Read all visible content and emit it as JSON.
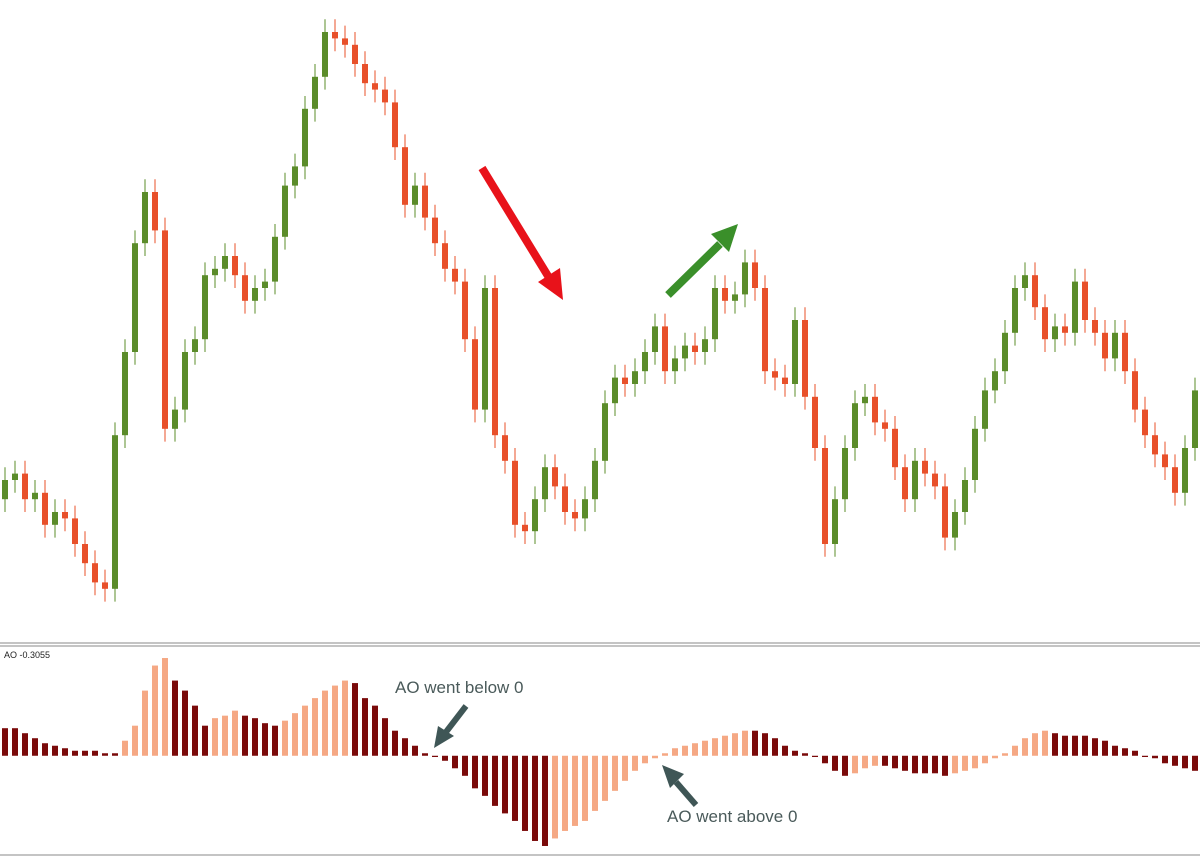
{
  "chart_data": [
    {
      "type": "candlestick",
      "up_color": "#5b8c2a",
      "down_color": "#e8502a",
      "ylim": [
        0,
        100
      ],
      "open": [
        22,
        25,
        26,
        22,
        23,
        18,
        20,
        19,
        15,
        12,
        9,
        8,
        32,
        45,
        62,
        70,
        64,
        33,
        36,
        45,
        47,
        57,
        58,
        60,
        57,
        53,
        55,
        56,
        63,
        71,
        74,
        83,
        88,
        95,
        94,
        93,
        90,
        87,
        86,
        84,
        77,
        68,
        71,
        66,
        62,
        58,
        56,
        47,
        36,
        55,
        32,
        28,
        18,
        17,
        22,
        27,
        24,
        20,
        19,
        22,
        28,
        37,
        41,
        40,
        42,
        45,
        49,
        42,
        44,
        46,
        45,
        47,
        55,
        53,
        54,
        59,
        55,
        42,
        41,
        40,
        50,
        38,
        30,
        15,
        22,
        30,
        37,
        38,
        34,
        33,
        27,
        22,
        28,
        26,
        24,
        16,
        20,
        25,
        33,
        39,
        42,
        48,
        55,
        57,
        52,
        47,
        49,
        48,
        56,
        50,
        48,
        44,
        48,
        42,
        36,
        32,
        29,
        27,
        23,
        30
      ],
      "high": [
        27,
        28,
        28,
        25,
        25,
        22,
        22,
        21,
        17,
        14,
        11,
        34,
        47,
        64,
        72,
        72,
        66,
        38,
        47,
        49,
        59,
        60,
        62,
        62,
        59,
        57,
        58,
        65,
        73,
        76,
        85,
        90,
        97,
        97,
        96,
        95,
        92,
        89,
        88,
        86,
        79,
        73,
        73,
        68,
        64,
        60,
        58,
        49,
        57,
        57,
        34,
        30,
        20,
        24,
        29,
        29,
        26,
        22,
        24,
        30,
        39,
        43,
        43,
        44,
        47,
        51,
        51,
        46,
        48,
        48,
        49,
        57,
        57,
        56,
        61,
        61,
        57,
        44,
        43,
        52,
        52,
        40,
        32,
        24,
        32,
        39,
        40,
        40,
        36,
        35,
        29,
        30,
        30,
        28,
        26,
        22,
        27,
        35,
        41,
        44,
        50,
        57,
        59,
        59,
        54,
        51,
        51,
        58,
        58,
        52,
        50,
        50,
        50,
        44,
        38,
        34,
        31,
        29,
        32,
        41
      ],
      "low": [
        20,
        23,
        20,
        20,
        16,
        16,
        17,
        13,
        10,
        7,
        6,
        6,
        30,
        43,
        60,
        62,
        31,
        31,
        34,
        43,
        45,
        55,
        56,
        55,
        51,
        51,
        53,
        54,
        61,
        69,
        72,
        81,
        86,
        92,
        91,
        88,
        85,
        84,
        82,
        75,
        66,
        66,
        64,
        60,
        56,
        54,
        45,
        34,
        34,
        30,
        26,
        16,
        15,
        15,
        20,
        22,
        18,
        17,
        17,
        20,
        26,
        35,
        38,
        38,
        40,
        43,
        40,
        40,
        42,
        43,
        43,
        45,
        51,
        51,
        52,
        53,
        40,
        39,
        38,
        38,
        36,
        28,
        13,
        13,
        20,
        28,
        35,
        32,
        31,
        25,
        20,
        20,
        24,
        22,
        14,
        14,
        18,
        23,
        31,
        37,
        40,
        46,
        53,
        50,
        45,
        45,
        46,
        46,
        48,
        46,
        42,
        42,
        40,
        34,
        30,
        27,
        25,
        21,
        21,
        28
      ],
      "close": [
        25,
        26,
        22,
        23,
        18,
        20,
        19,
        15,
        12,
        9,
        8,
        32,
        45,
        62,
        70,
        64,
        33,
        36,
        45,
        47,
        57,
        58,
        60,
        57,
        53,
        55,
        56,
        63,
        71,
        74,
        83,
        88,
        95,
        94,
        93,
        90,
        87,
        86,
        84,
        77,
        68,
        71,
        66,
        62,
        58,
        56,
        47,
        36,
        55,
        32,
        28,
        18,
        17,
        22,
        27,
        24,
        20,
        19,
        22,
        28,
        37,
        41,
        40,
        42,
        45,
        49,
        42,
        44,
        46,
        45,
        47,
        55,
        53,
        54,
        59,
        55,
        42,
        41,
        40,
        50,
        38,
        30,
        15,
        22,
        30,
        37,
        38,
        34,
        33,
        27,
        22,
        28,
        26,
        24,
        16,
        20,
        25,
        33,
        39,
        42,
        48,
        55,
        57,
        52,
        47,
        49,
        48,
        56,
        50,
        48,
        44,
        48,
        42,
        36,
        32,
        29,
        27,
        23,
        30,
        39
      ]
    },
    {
      "type": "bar",
      "title": "AO -0.3055",
      "up_color": "#f5a884",
      "down_color": "#7a0a0a",
      "ylim": [
        -0.4,
        0.43
      ],
      "annotations": [
        "AO went below 0",
        "AO went above 0"
      ],
      "values": [
        0.11,
        0.11,
        0.09,
        0.07,
        0.05,
        0.04,
        0.03,
        0.02,
        0.02,
        0.02,
        0.01,
        0.01,
        0.06,
        0.12,
        0.26,
        0.36,
        0.39,
        0.3,
        0.26,
        0.2,
        0.12,
        0.15,
        0.16,
        0.18,
        0.16,
        0.15,
        0.13,
        0.12,
        0.14,
        0.17,
        0.2,
        0.23,
        0.26,
        0.28,
        0.3,
        0.29,
        0.23,
        0.2,
        0.15,
        0.1,
        0.07,
        0.04,
        0.01,
        -0.005,
        -0.02,
        -0.05,
        -0.08,
        -0.13,
        -0.16,
        -0.2,
        -0.23,
        -0.26,
        -0.3,
        -0.34,
        -0.36,
        -0.33,
        -0.3,
        -0.28,
        -0.26,
        -0.22,
        -0.18,
        -0.14,
        -0.1,
        -0.06,
        -0.03,
        -0.01,
        0.01,
        0.03,
        0.04,
        0.05,
        0.06,
        0.07,
        0.08,
        0.09,
        0.1,
        0.1,
        0.09,
        0.07,
        0.04,
        0.02,
        0.01,
        -0.005,
        -0.03,
        -0.06,
        -0.08,
        -0.07,
        -0.05,
        -0.04,
        -0.04,
        -0.05,
        -0.06,
        -0.07,
        -0.07,
        -0.07,
        -0.08,
        -0.07,
        -0.06,
        -0.05,
        -0.03,
        -0.01,
        0.01,
        0.04,
        0.07,
        0.09,
        0.1,
        0.09,
        0.08,
        0.08,
        0.08,
        0.07,
        0.06,
        0.04,
        0.03,
        0.02,
        -0.005,
        -0.01,
        -0.03,
        -0.04,
        -0.05,
        -0.06
      ]
    }
  ]
}
